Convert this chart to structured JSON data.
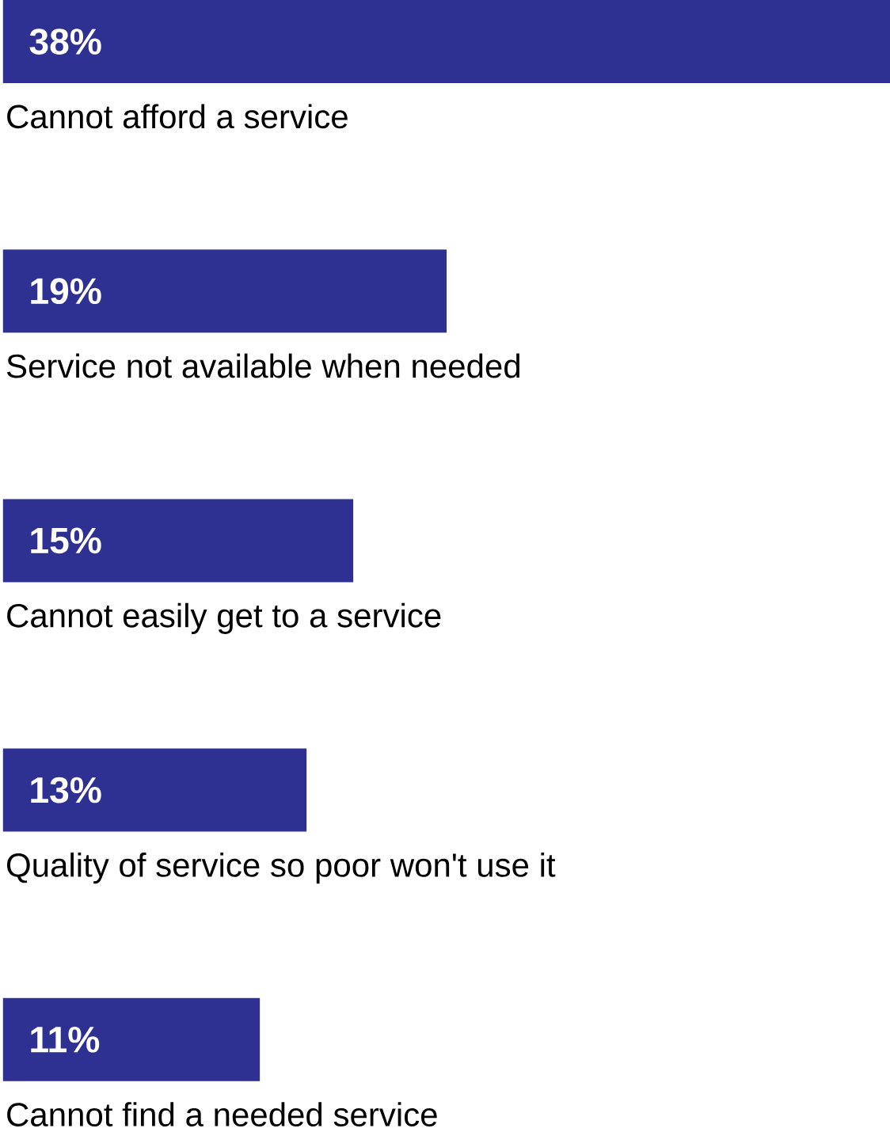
{
  "chart_data": {
    "type": "bar",
    "orientation": "horizontal",
    "categories": [
      "Cannot afford a service",
      "Service not available when needed",
      "Cannot easily get to a service",
      "Quality of service so poor won't use it",
      "Cannot find a needed service"
    ],
    "values": [
      38,
      19,
      15,
      13,
      11
    ],
    "value_labels": [
      "38%",
      "19%",
      "15%",
      "13%",
      "11%"
    ],
    "color": "#2e3192"
  }
}
